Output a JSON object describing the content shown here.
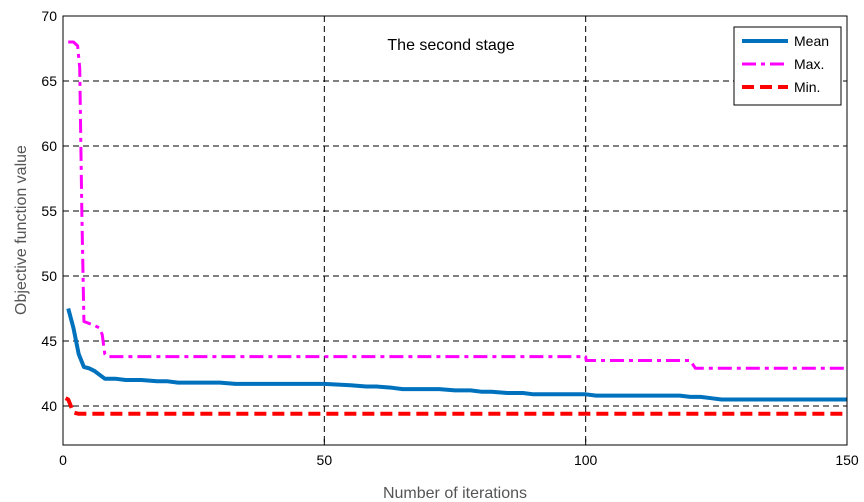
{
  "chart_data": {
    "type": "line",
    "title": "",
    "annotation": "The second stage",
    "xlabel": "Number of iterations",
    "ylabel": "Objective function value",
    "xlim": [
      0,
      150
    ],
    "ylim": [
      37,
      70
    ],
    "xticks": [
      0,
      50,
      100,
      150
    ],
    "yticks": [
      40,
      45,
      50,
      55,
      60,
      65,
      70
    ],
    "grid": true,
    "legend_position": "top-right",
    "series": [
      {
        "name": "Mean",
        "color": "#0072BD",
        "style": "solid",
        "x": [
          1,
          2,
          3,
          4,
          5,
          6,
          7,
          8,
          10,
          12,
          15,
          18,
          20,
          22,
          25,
          30,
          33,
          36,
          40,
          45,
          50,
          55,
          58,
          60,
          63,
          65,
          68,
          72,
          75,
          78,
          80,
          82,
          85,
          88,
          90,
          95,
          100,
          102,
          105,
          110,
          115,
          118,
          120,
          122,
          124,
          126,
          130,
          140,
          150
        ],
        "y": [
          47.5,
          46.0,
          44.0,
          43.0,
          42.9,
          42.7,
          42.4,
          42.1,
          42.1,
          42.0,
          42.0,
          41.9,
          41.9,
          41.8,
          41.8,
          41.8,
          41.7,
          41.7,
          41.7,
          41.7,
          41.7,
          41.6,
          41.5,
          41.5,
          41.4,
          41.3,
          41.3,
          41.3,
          41.2,
          41.2,
          41.1,
          41.1,
          41.0,
          41.0,
          40.9,
          40.9,
          40.9,
          40.8,
          40.8,
          40.8,
          40.8,
          40.8,
          40.7,
          40.7,
          40.6,
          40.5,
          40.5,
          40.5,
          40.5
        ]
      },
      {
        "name": "Max.",
        "color": "#FF00FF",
        "style": "dashdot",
        "x": [
          1,
          2,
          2.8,
          3.2,
          3.6,
          4,
          6,
          7,
          7.5,
          8,
          8.5,
          20,
          50,
          80,
          100,
          100.1,
          120,
          121,
          150
        ],
        "y": [
          68.0,
          68.0,
          67.7,
          66.0,
          55.0,
          46.5,
          46.2,
          46.0,
          45.5,
          44.0,
          43.8,
          43.8,
          43.8,
          43.8,
          43.8,
          43.5,
          43.5,
          42.9,
          42.9
        ]
      },
      {
        "name": "Min.",
        "color": "#FF0000",
        "style": "dashed",
        "x": [
          0.5,
          1,
          1.5,
          2,
          3,
          50,
          100,
          150
        ],
        "y": [
          40.6,
          40.5,
          40.0,
          39.5,
          39.4,
          39.4,
          39.4,
          39.4
        ]
      }
    ]
  }
}
